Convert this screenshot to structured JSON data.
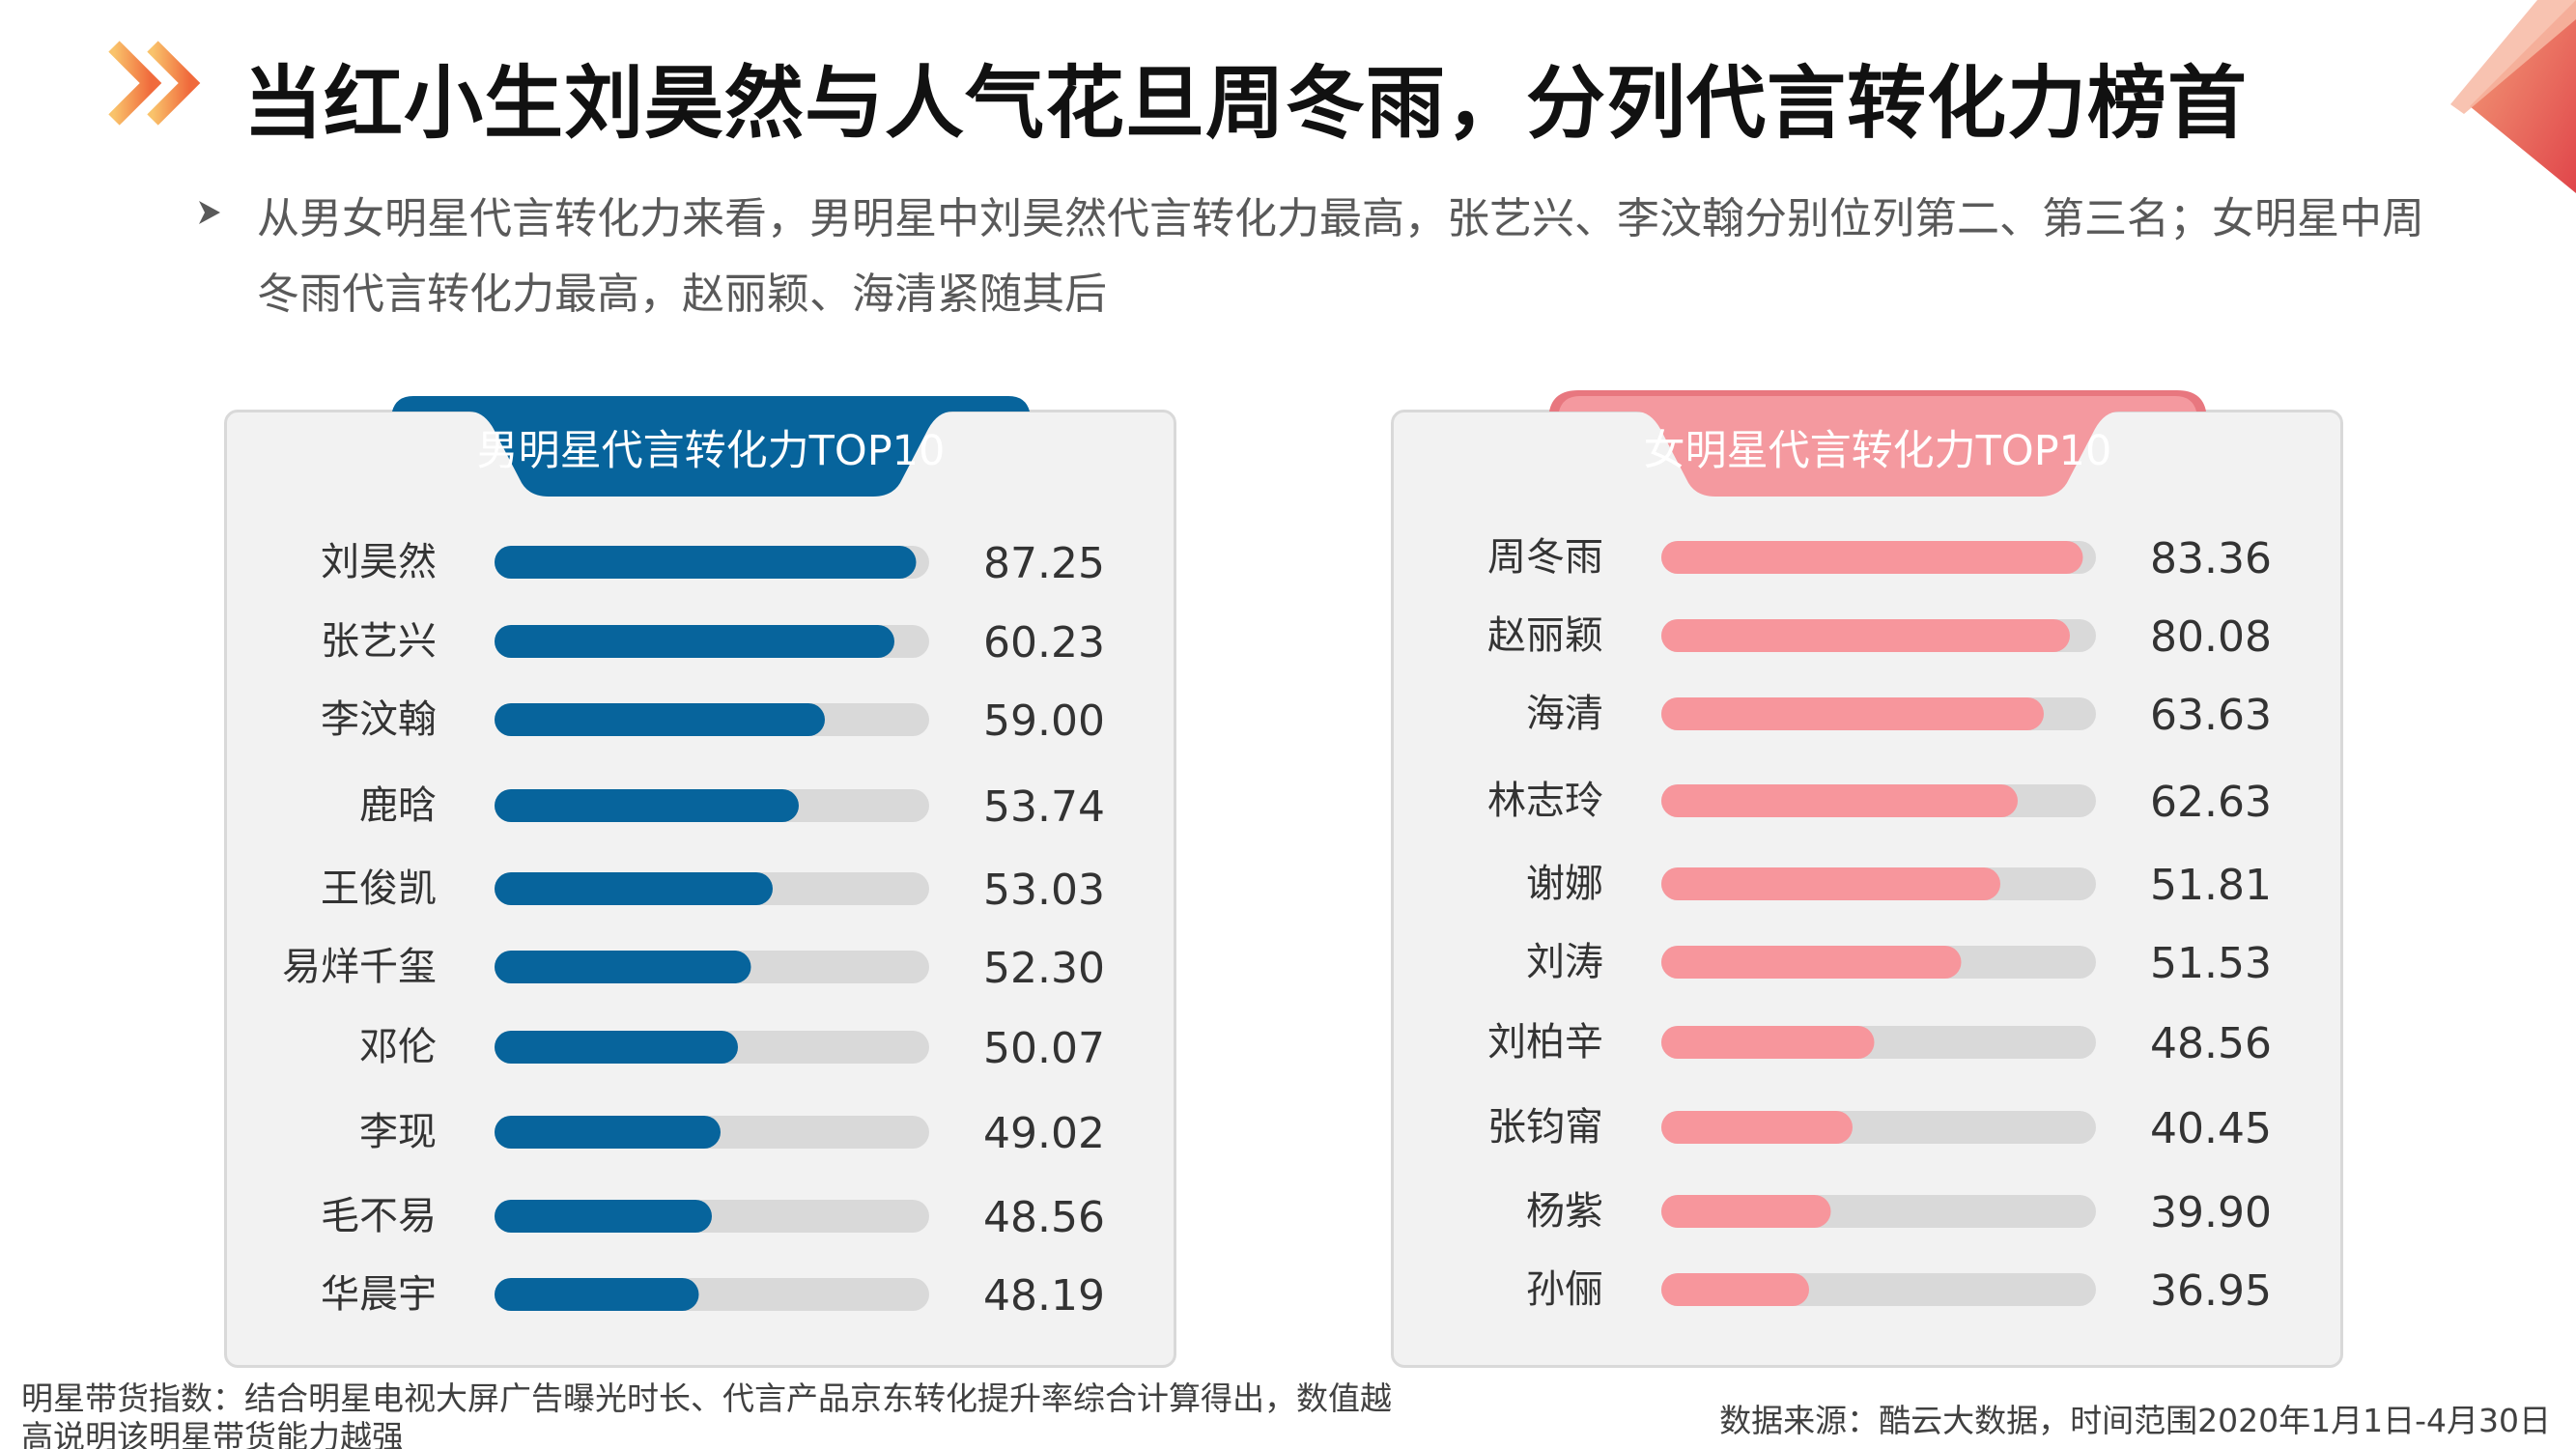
{
  "title": "当红小生刘昊然与人气花旦周冬雨，分列代言转化力榜首",
  "summary": "从男女明星代言转化力来看，男明星中刘昊然代言转化力最高，张艺兴、李汶翰分别位列第二、第三名；女明星中周冬雨代言转化力最高，赵丽颖、海清紧随其后",
  "colors": {
    "male_bar": "#07649c",
    "female_bar": "#f7969c",
    "track": "#d9d9d9",
    "male_ribbon": "#07649c",
    "female_ribbon": "#f4999f",
    "female_ribbon_edge": "#e8777f",
    "arrow_light": "#f9c36b",
    "arrow_dark": "#f06a3c"
  },
  "chart_data": [
    {
      "type": "bar",
      "title": "男明星代言转化力TOP10",
      "categories": [
        "刘昊然",
        "张艺兴",
        "李汶翰",
        "鹿晗",
        "王俊凯",
        "易烊千玺",
        "邓伦",
        "李现",
        "毛不易",
        "华晨宇"
      ],
      "values": [
        "87.25",
        "60.23",
        "59.00",
        "53.74",
        "53.03",
        "52.30",
        "50.07",
        "49.02",
        "48.56",
        "48.19"
      ],
      "fill_fractions": [
        0.97,
        0.92,
        0.76,
        0.7,
        0.64,
        0.59,
        0.56,
        0.52,
        0.5,
        0.47
      ]
    },
    {
      "type": "bar",
      "title": "女明星代言转化力TOP10",
      "categories": [
        "周冬雨",
        "赵丽颖",
        "海清",
        "林志玲",
        "谢娜",
        "刘涛",
        "刘柏辛",
        "张钧甯",
        "杨紫",
        "孙俪"
      ],
      "values": [
        "83.36",
        "80.08",
        "63.63",
        "62.63",
        "51.81",
        "51.53",
        "48.56",
        "40.45",
        "39.90",
        "36.95"
      ],
      "fill_fractions": [
        0.97,
        0.94,
        0.88,
        0.82,
        0.78,
        0.69,
        0.49,
        0.44,
        0.39,
        0.34
      ]
    }
  ],
  "footnote": "明星带货指数：结合明星电视大屏广告曝光时长、代言产品京东转化提升率综合计算得出，数值越高说明该明星带货能力越强",
  "source": "数据来源：酷云大数据，时间范围2020年1月1日-4月30日"
}
